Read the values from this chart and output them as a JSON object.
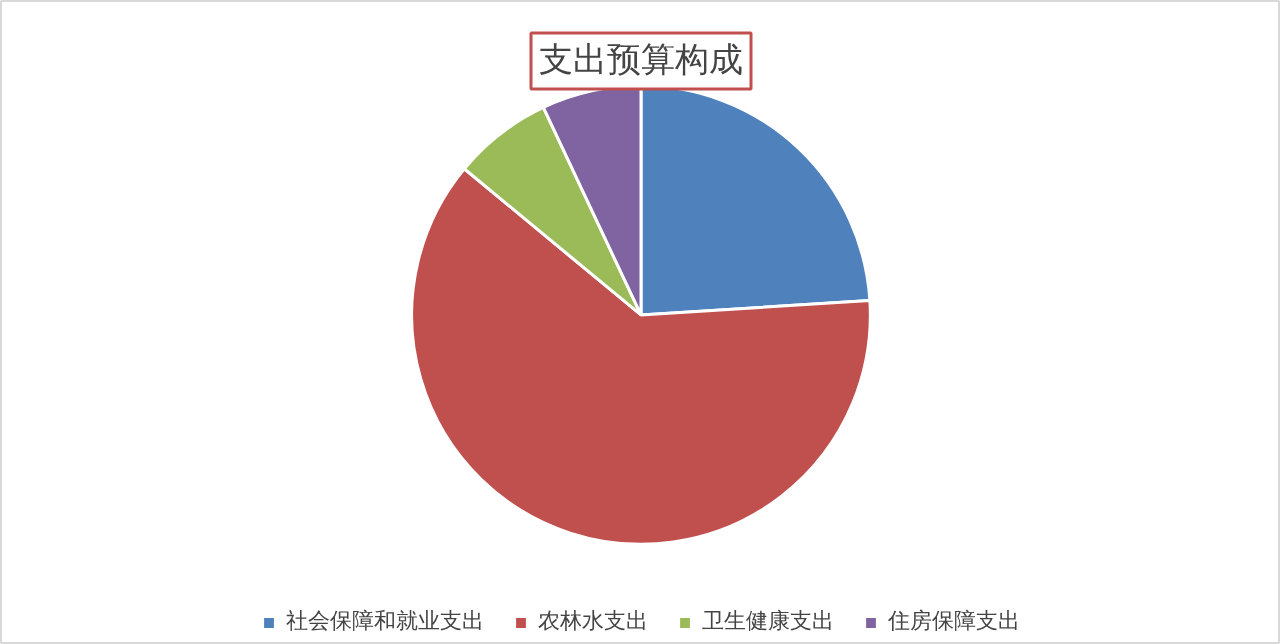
{
  "chart_data": {
    "type": "pie",
    "title": "支出预算构成",
    "categories": [
      "社会保障和就业支出",
      "农林水支出",
      "卫生健康支出",
      "住房保障支出"
    ],
    "values": [
      24,
      62,
      7,
      7
    ],
    "colors": [
      "#4f81bd",
      "#c0504d",
      "#9bbb59",
      "#8064a2"
    ],
    "legend": "bottom"
  }
}
